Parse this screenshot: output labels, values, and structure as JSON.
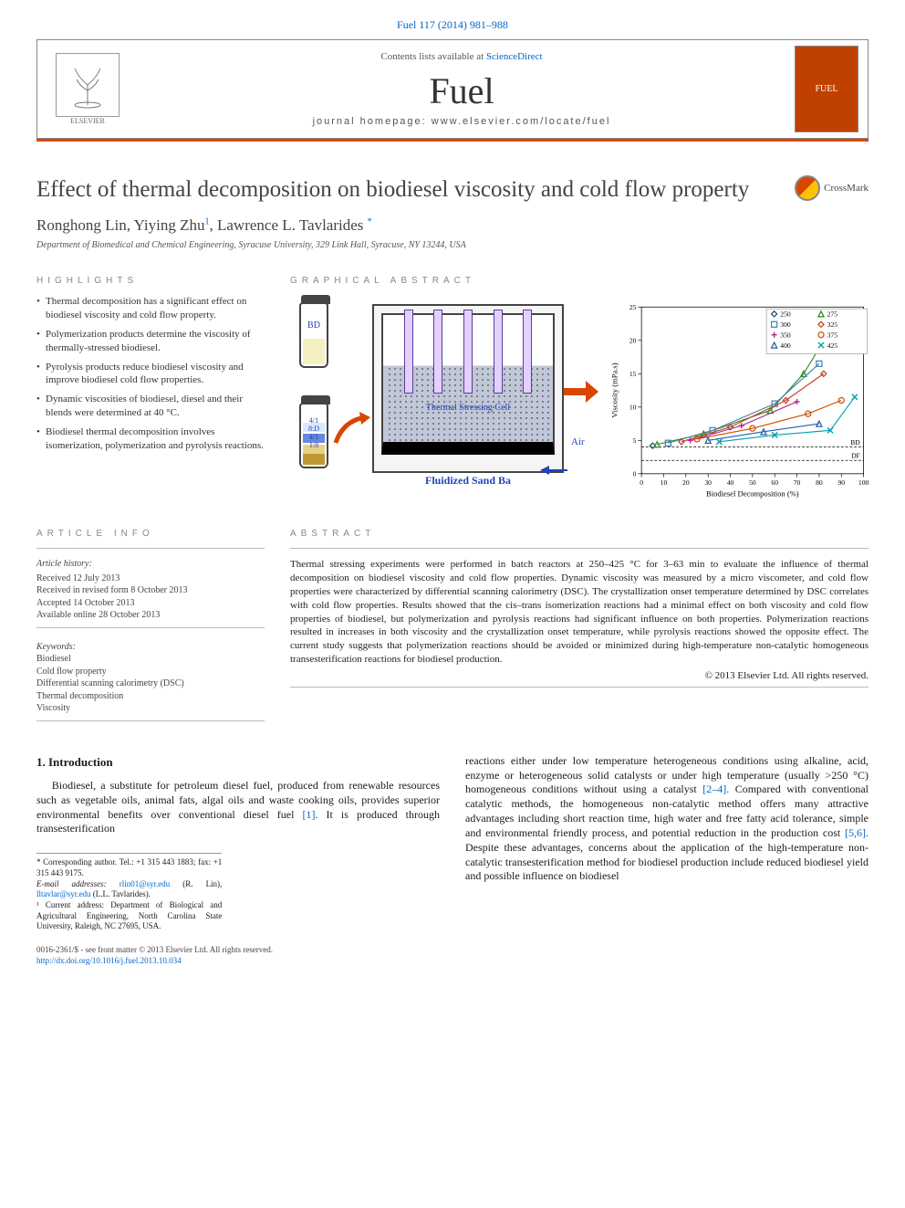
{
  "citation": "Fuel 117 (2014) 981–988",
  "header": {
    "contents_prefix": "Contents lists available at ",
    "contents_link": "ScienceDirect",
    "journal": "Fuel",
    "homepage_prefix": "journal homepage: ",
    "homepage": "www.elsevier.com/locate/fuel",
    "publisher": "ELSEVIER",
    "cover_label": "FUEL"
  },
  "crossmark": "CrossMark",
  "title": "Effect of thermal decomposition on biodiesel viscosity and cold flow property",
  "authors": "Ronghong Lin, Yiying Zhu",
  "author_sup1": "1",
  "author_last": ", Lawrence L. Tavlarides",
  "author_sup2": "*",
  "affiliation": "Department of Biomedical and Chemical Engineering, Syracuse University, 329 Link Hall, Syracuse, NY 13244, USA",
  "labels": {
    "highlights": "HIGHLIGHTS",
    "graphical_abstract": "GRAPHICAL ABSTRACT",
    "article_info": "ARTICLE INFO",
    "abstract": "ABSTRACT"
  },
  "highlights": [
    "Thermal decomposition has a significant effect on biodiesel viscosity and cold flow property.",
    "Polymerization products determine the viscosity of thermally-stressed biodiesel.",
    "Pyrolysis products reduce biodiesel viscosity and improve biodiesel cold flow properties.",
    "Dynamic viscosities of biodiesel, diesel and their blends were determined at 40 °C.",
    "Biodiesel thermal decomposition involves isomerization, polymerization and pyrolysis reactions."
  ],
  "graphical_abstract": {
    "bd_label": "BD",
    "vial_lower_labels": [
      "4/1",
      "8:D",
      "4/1",
      "1:8"
    ],
    "sandbath_inner_label": "Thermal Stressing Cell",
    "sandbath_caption": "Fluidized Sand Ba",
    "air_label": "Air",
    "chart": {
      "type": "line",
      "xlabel": "Biodiesel Decomposition (%)",
      "ylabel": "Viscosity (mPa.s)",
      "xlim": [
        0,
        100
      ],
      "xtick_step": 10,
      "ylim": [
        0,
        25
      ],
      "ytick_step": 5,
      "label_fontsize": 9,
      "tick_fontsize": 8,
      "grid": false,
      "background_color": "#ffffff",
      "ref_lines": [
        {
          "label": "BD",
          "y": 4.0,
          "color": "#000000",
          "dash": "3,2"
        },
        {
          "label": "DF",
          "y": 2.0,
          "color": "#000000",
          "dash": "3,2"
        }
      ],
      "legend": {
        "position": "top-right",
        "fontsize": 8
      },
      "series": [
        {
          "label": "250",
          "color": "#1f497d",
          "marker": "diamond",
          "x": [
            5
          ],
          "y": [
            4.2
          ]
        },
        {
          "label": "275",
          "color": "#2e8b1f",
          "marker": "triangle",
          "x": [
            7,
            28,
            58,
            73,
            85
          ],
          "y": [
            4.4,
            6.0,
            9.5,
            15.0,
            21.5
          ]
        },
        {
          "label": "300",
          "color": "#4682b4",
          "marker": "square",
          "x": [
            12,
            32,
            60,
            80
          ],
          "y": [
            4.6,
            6.5,
            10.5,
            16.5
          ]
        },
        {
          "label": "325",
          "color": "#c43e1c",
          "marker": "diamond",
          "x": [
            18,
            40,
            65,
            82
          ],
          "y": [
            4.8,
            7.0,
            11.0,
            15.0
          ]
        },
        {
          "label": "350",
          "color": "#b02a8f",
          "marker": "plus",
          "x": [
            22,
            45,
            70
          ],
          "y": [
            5.0,
            7.2,
            10.8
          ]
        },
        {
          "label": "375",
          "color": "#d04e00",
          "marker": "circle",
          "x": [
            25,
            50,
            75,
            90
          ],
          "y": [
            5.2,
            6.8,
            9.0,
            11.0
          ]
        },
        {
          "label": "400",
          "color": "#2a5da8",
          "marker": "triangle",
          "x": [
            30,
            55,
            80
          ],
          "y": [
            5.0,
            6.3,
            7.5
          ]
        },
        {
          "label": "425",
          "color": "#00a0b0",
          "marker": "x",
          "x": [
            35,
            60,
            85,
            96
          ],
          "y": [
            4.8,
            5.8,
            6.5,
            11.5
          ]
        }
      ]
    }
  },
  "article_info": {
    "history_hdr": "Article history:",
    "received": "Received 12 July 2013",
    "revised": "Received in revised form 8 October 2013",
    "accepted": "Accepted 14 October 2013",
    "online": "Available online 28 October 2013",
    "keywords_hdr": "Keywords:",
    "keywords": [
      "Biodiesel",
      "Cold flow property",
      "Differential scanning calorimetry (DSC)",
      "Thermal decomposition",
      "Viscosity"
    ]
  },
  "abstract": {
    "text": "Thermal stressing experiments were performed in batch reactors at 250–425 °C for 3–63 min to evaluate the influence of thermal decomposition on biodiesel viscosity and cold flow properties. Dynamic viscosity was measured by a micro viscometer, and cold flow properties were characterized by differential scanning calorimetry (DSC). The crystallization onset temperature determined by DSC correlates with cold flow properties. Results showed that the cis–trans isomerization reactions had a minimal effect on both viscosity and cold flow properties of biodiesel, but polymerization and pyrolysis reactions had significant influence on both properties. Polymerization reactions resulted in increases in both viscosity and the crystallization onset temperature, while pyrolysis reactions showed the opposite effect. The current study suggests that polymerization reactions should be avoided or minimized during high-temperature non-catalytic homogeneous transesterification reactions for biodiesel production.",
    "copyright": "© 2013 Elsevier Ltd. All rights reserved."
  },
  "body": {
    "section_title": "1. Introduction",
    "col1": "Biodiesel, a substitute for petroleum diesel fuel, produced from renewable resources such as vegetable oils, animal fats, algal oils and waste cooking oils, provides superior environmental benefits over conventional diesel fuel [1]. It is produced through transesterification",
    "col2": "reactions either under low temperature heterogeneous conditions using alkaline, acid, enzyme or heterogeneous solid catalysts or under high temperature (usually >250 °C) homogeneous conditions without using a catalyst [2–4]. Compared with conventional catalytic methods, the homogeneous non-catalytic method offers many attractive advantages including short reaction time, high water and free fatty acid tolerance, simple and environmental friendly process, and potential reduction in the production cost [5,6]. Despite these advantages, concerns about the application of the high-temperature non-catalytic transesterification method for biodiesel production include reduced biodiesel yield and possible influence on biodiesel",
    "refs": {
      "r1": "[1]",
      "r24": "[2–4]",
      "r56": "[5,6]"
    }
  },
  "footnotes": {
    "corr": "* Corresponding author. Tel.: +1 315 443 1883; fax: +1 315 443 9175.",
    "email_label": "E-mail addresses: ",
    "email1": "rlin01@syr.edu",
    "email1_who": " (R. Lin), ",
    "email2": "lltavlar@syr.edu",
    "email2_who": " (L.L. Tavlarides).",
    "note1": "¹ Current address: Department of Biological and Agricultural Engineering, North Carolina State University, Raleigh, NC 27695, USA."
  },
  "bottom": {
    "issn": "0016-2361/$ - see front matter © 2013 Elsevier Ltd. All rights reserved.",
    "doi": "http://dx.doi.org/10.1016/j.fuel.2013.10.034"
  }
}
